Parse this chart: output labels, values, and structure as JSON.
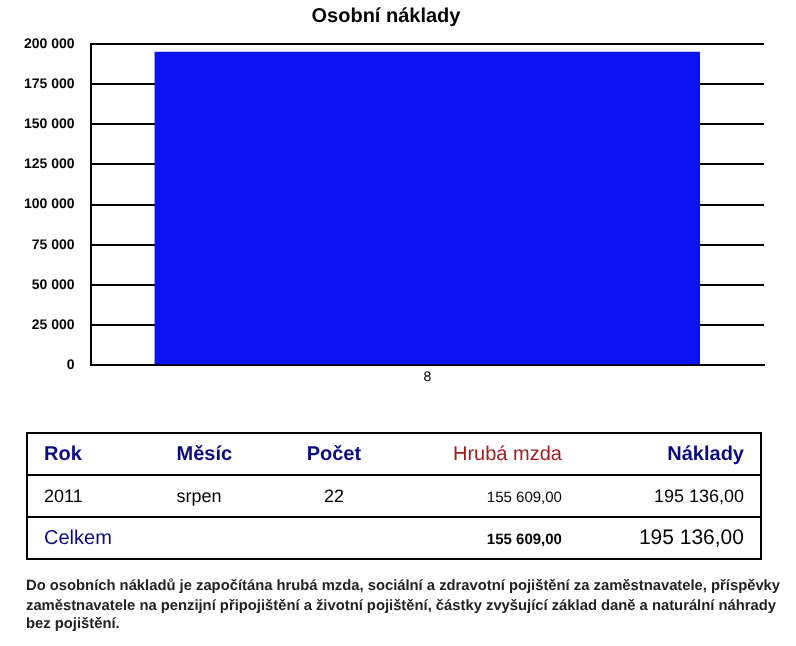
{
  "chart_data": {
    "type": "bar",
    "title": "Osobní náklady",
    "categories": [
      "8"
    ],
    "values": [
      195136
    ],
    "color": "#0a14f0",
    "ylim": [
      0,
      200000
    ],
    "yticks": [
      {
        "value": 0,
        "label": "0"
      },
      {
        "value": 25000,
        "label": "25 000"
      },
      {
        "value": 50000,
        "label": "50 000"
      },
      {
        "value": 75000,
        "label": "75 000"
      },
      {
        "value": 100000,
        "label": "100 000"
      },
      {
        "value": 125000,
        "label": "125 000"
      },
      {
        "value": 150000,
        "label": "150 000"
      },
      {
        "value": 175000,
        "label": "175 000"
      },
      {
        "value": 200000,
        "label": "200 000"
      }
    ],
    "grid": "y",
    "legend": false,
    "annotations": [
      "Rok",
      "Měsíc",
      "Počet",
      "Hrubá mzda",
      "Náklady",
      "2011",
      "srpen",
      "22",
      "155 609,00",
      "195 136,00",
      "Celkem",
      "155 609,00",
      "195 136,00",
      "Do osobních nákladů je započítána hrubá mzda, sociální a zdravotní pojištění za zaměstnavatele, příspěvky zaměstnavatele na penzijní připojištění a životní pojištění, částky zvyšující základ daně a naturální náhrady bez pojištění."
    ]
  }
}
